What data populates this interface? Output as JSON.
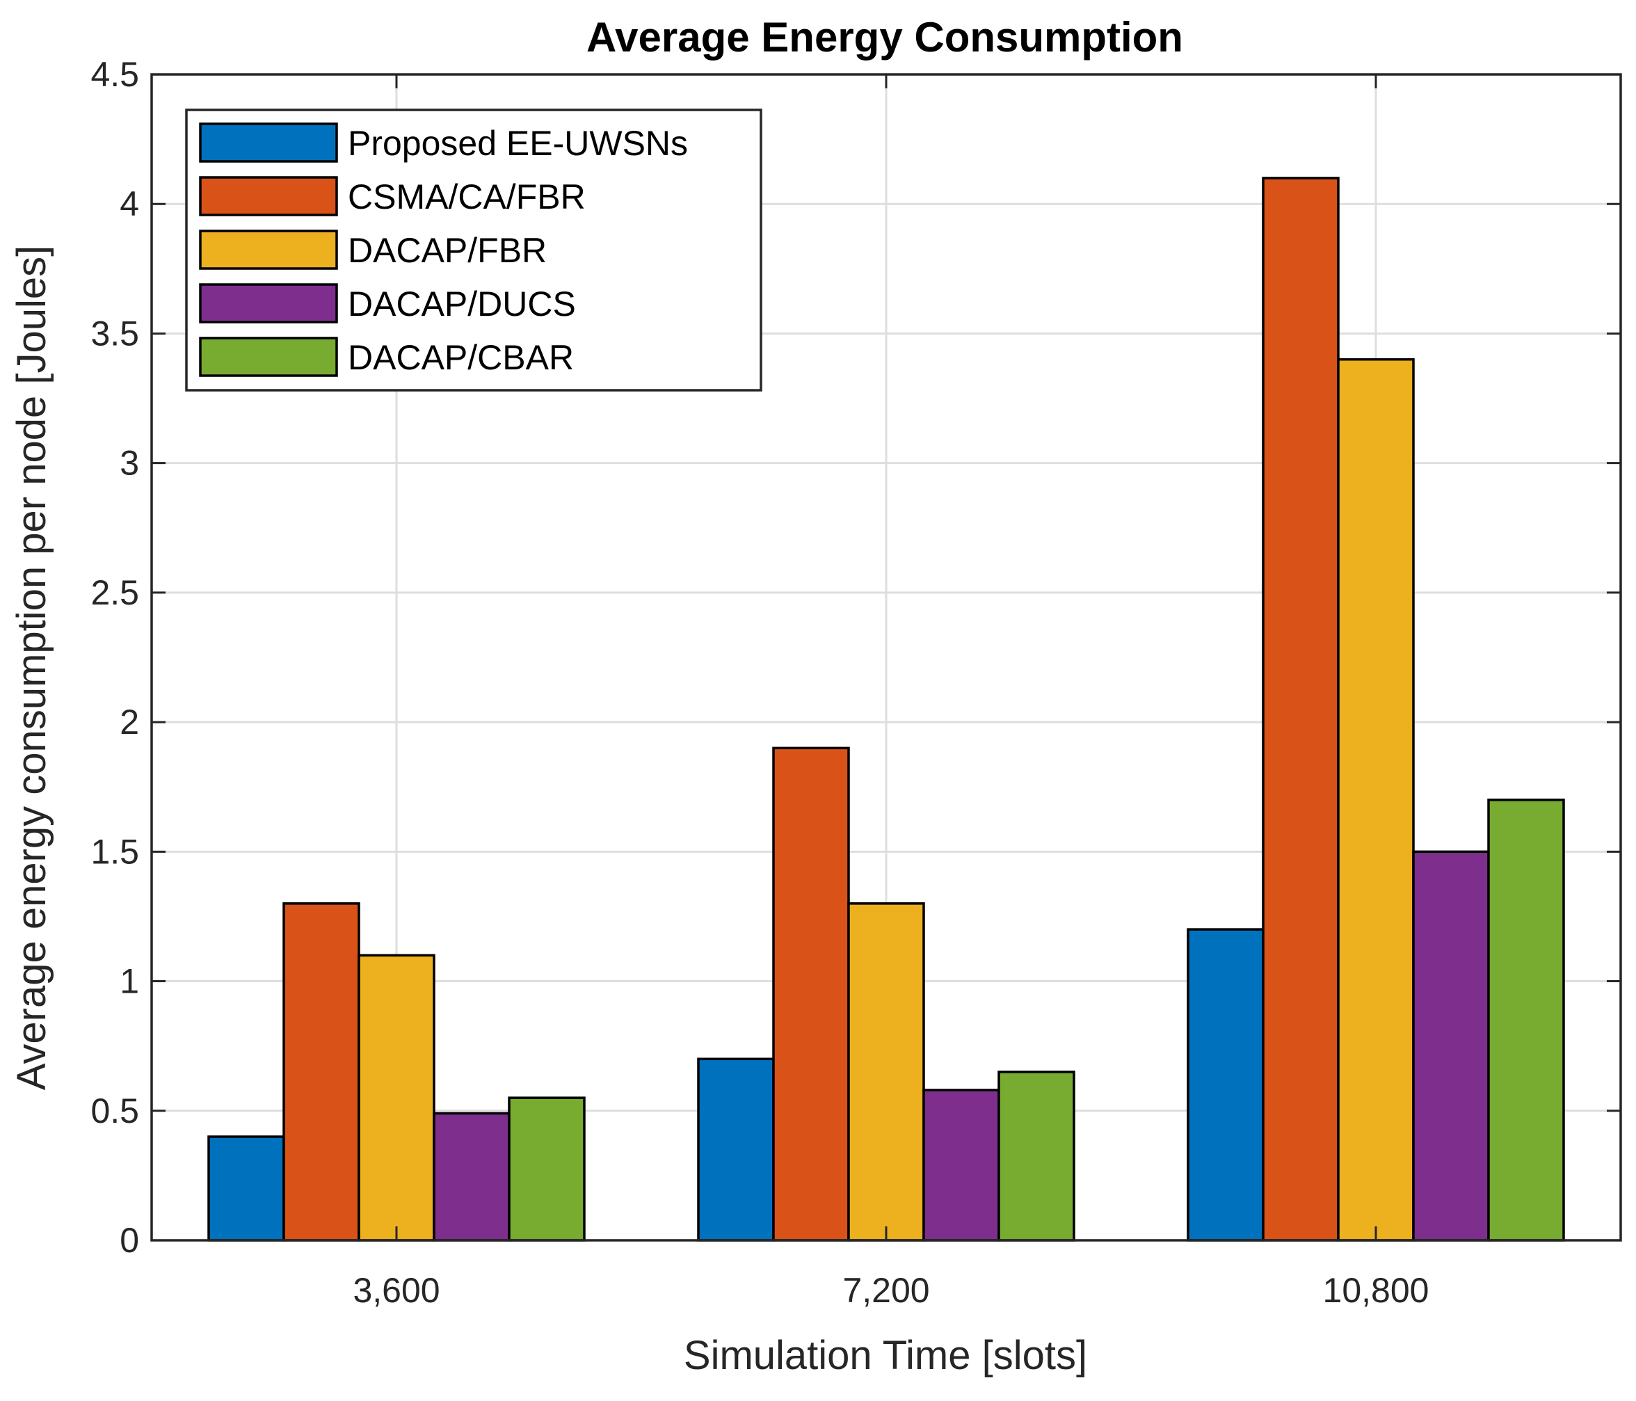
{
  "chart_data": {
    "type": "bar",
    "title": "Average Energy Consumption",
    "xlabel": "Simulation Time [slots]",
    "ylabel": "Average energy consumption per node [Joules]",
    "categories": [
      "3,600",
      "7,200",
      "10,800"
    ],
    "ylim": [
      0,
      4.5
    ],
    "yticks": [
      0,
      0.5,
      1,
      1.5,
      2,
      2.5,
      3,
      3.5,
      4,
      4.5
    ],
    "ytick_labels": [
      "0",
      "0.5",
      "1",
      "1.5",
      "2",
      "2.5",
      "3",
      "3.5",
      "4",
      "4.5"
    ],
    "grid": true,
    "legend_position": "top-left",
    "series": [
      {
        "name": "Proposed EE-UWSNs",
        "color": "#0072BD",
        "values": [
          0.4,
          0.7,
          1.2
        ]
      },
      {
        "name": "CSMA/CA/FBR",
        "color": "#D95319",
        "values": [
          1.3,
          1.9,
          4.1
        ]
      },
      {
        "name": "DACAP/FBR",
        "color": "#EDB120",
        "values": [
          1.1,
          1.3,
          3.4
        ]
      },
      {
        "name": "DACAP/DUCS",
        "color": "#7E2F8E",
        "values": [
          0.49,
          0.58,
          1.5
        ]
      },
      {
        "name": "DACAP/CBAR",
        "color": "#77AC30",
        "values": [
          0.55,
          0.65,
          1.7
        ]
      }
    ]
  }
}
